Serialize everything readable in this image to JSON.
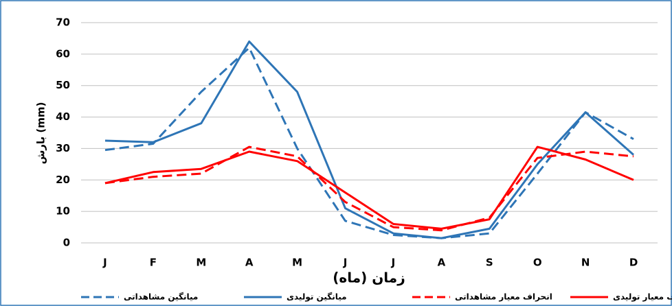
{
  "chart_data": {
    "type": "line",
    "x_label": "زمان (ماه)",
    "y_label": "بارش (mm)",
    "categories": [
      "J",
      "F",
      "M",
      "A",
      "M",
      "J",
      "J",
      "A",
      "S",
      "O",
      "N",
      "D"
    ],
    "series": [
      {
        "name": "میانگین مشاهداتی",
        "color": "#2e75b6",
        "dashed": true,
        "values": [
          29.5,
          31.5,
          48,
          62,
          30,
          7,
          2.5,
          1.5,
          3,
          22,
          41.5,
          33
        ]
      },
      {
        "name": "میانگین تولیدی",
        "color": "#2e75b6",
        "dashed": false,
        "values": [
          32.5,
          32,
          38,
          64,
          48,
          11,
          3,
          1.5,
          4.5,
          25,
          41.5,
          28
        ]
      },
      {
        "name": "انحراف معیار مشاهداتی",
        "color": "#ff0000",
        "dashed": true,
        "values": [
          19,
          21,
          22,
          30.5,
          27.5,
          13,
          5,
          4,
          8,
          27,
          29,
          27.5
        ]
      },
      {
        "name": "انحراف معیار تولیدی",
        "color": "#ff0000",
        "dashed": false,
        "values": [
          19,
          22.5,
          23.5,
          29,
          26,
          16,
          6,
          4.5,
          7.5,
          30.5,
          26.5,
          20
        ]
      }
    ],
    "ylim": [
      0,
      70
    ],
    "yticks": [
      0,
      10,
      20,
      30,
      40,
      50,
      60,
      70
    ],
    "grid": true
  }
}
